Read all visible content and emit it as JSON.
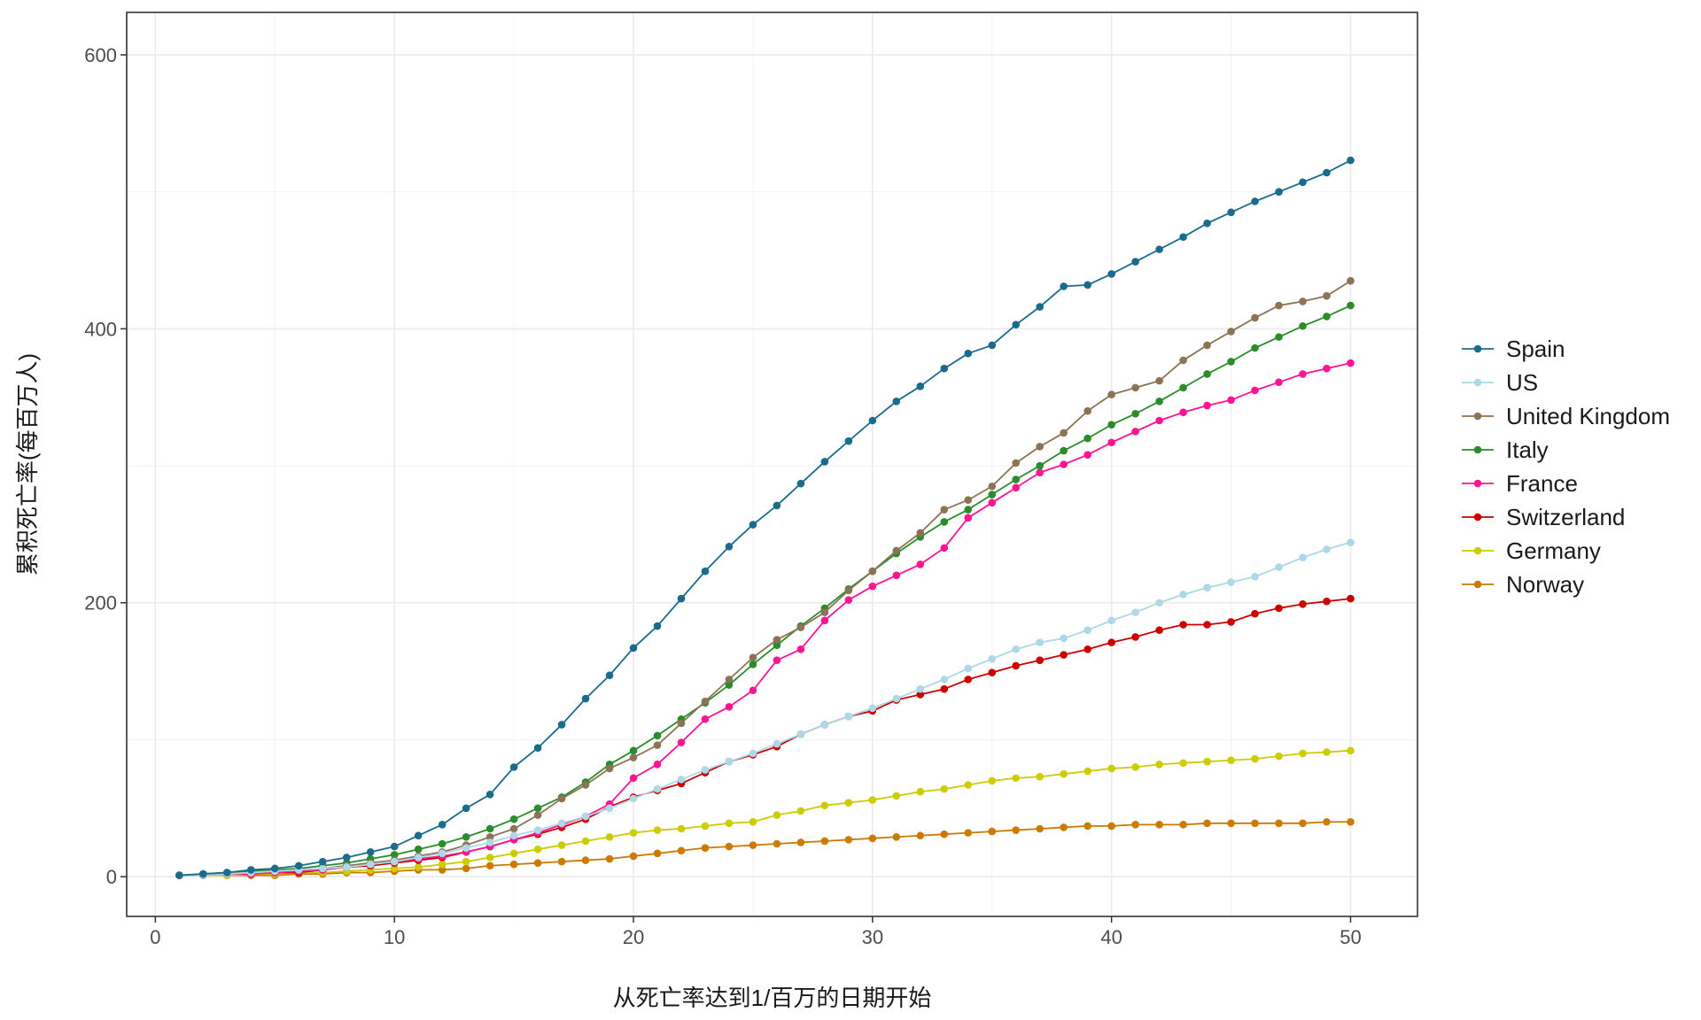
{
  "chart_data": {
    "type": "line",
    "xlabel": "从死亡率达到1/百万的日期开始",
    "ylabel": "累积死亡率(每百万人)",
    "xlim": [
      -1.2,
      52.8
    ],
    "ylim": [
      -29,
      631
    ],
    "x_ticks": [
      0,
      10,
      20,
      30,
      40,
      50
    ],
    "y_ticks": [
      0,
      200,
      400,
      600
    ],
    "grid": true,
    "legend_position": "right",
    "x": [
      1,
      2,
      3,
      4,
      5,
      6,
      7,
      8,
      9,
      10,
      11,
      12,
      13,
      14,
      15,
      16,
      17,
      18,
      19,
      20,
      21,
      22,
      23,
      24,
      25,
      26,
      27,
      28,
      29,
      30,
      31,
      32,
      33,
      34,
      35,
      36,
      37,
      38,
      39,
      40,
      41,
      42,
      43,
      44,
      45,
      46,
      47,
      48,
      49,
      50
    ],
    "series": [
      {
        "name": "Spain",
        "color": "#1a6b8c",
        "values": [
          1,
          2,
          3,
          5,
          6,
          8,
          11,
          14,
          18,
          22,
          30,
          38,
          50,
          60,
          80,
          94,
          111,
          130,
          147,
          167,
          183,
          203,
          223,
          241,
          257,
          271,
          287,
          303,
          318,
          333,
          347,
          358,
          371,
          382,
          388,
          403,
          416,
          431,
          432,
          440,
          449,
          458,
          467,
          477,
          485,
          493,
          500,
          507,
          514,
          523
        ]
      },
      {
        "name": "US",
        "color": "#add8e6",
        "values": [
          1,
          1,
          2,
          3,
          4,
          5,
          6,
          7,
          9,
          11,
          14,
          17,
          21,
          25,
          30,
          34,
          39,
          44,
          50,
          57,
          64,
          71,
          78,
          84,
          90,
          97,
          104,
          111,
          117,
          123,
          130,
          137,
          144,
          152,
          159,
          166,
          171,
          174,
          180,
          187,
          193,
          200,
          206,
          211,
          215,
          219,
          226,
          233,
          239,
          244
        ]
      },
      {
        "name": "United Kingdom",
        "color": "#8b7355",
        "values": [
          1,
          1,
          2,
          3,
          4,
          5,
          6,
          8,
          10,
          12,
          15,
          18,
          23,
          29,
          35,
          45,
          57,
          67,
          79,
          87,
          96,
          112,
          128,
          144,
          160,
          173,
          182,
          193,
          209,
          223,
          238,
          251,
          268,
          275,
          285,
          302,
          314,
          324,
          340,
          352,
          357,
          362,
          377,
          388,
          398,
          408,
          417,
          420,
          424,
          435
        ]
      },
      {
        "name": "Italy",
        "color": "#2a8c2a",
        "values": [
          1,
          2,
          3,
          4,
          5,
          6,
          8,
          10,
          13,
          16,
          20,
          24,
          29,
          35,
          42,
          50,
          58,
          69,
          82,
          92,
          103,
          115,
          127,
          140,
          155,
          169,
          183,
          196,
          210,
          223,
          236,
          248,
          259,
          268,
          279,
          290,
          300,
          311,
          320,
          330,
          338,
          347,
          357,
          367,
          376,
          386,
          394,
          402,
          409,
          417
        ]
      },
      {
        "name": "France",
        "color": "#ff1493",
        "values": [
          1,
          1,
          2,
          2,
          3,
          4,
          5,
          7,
          9,
          11,
          13,
          15,
          18,
          22,
          27,
          32,
          38,
          44,
          53,
          72,
          82,
          98,
          115,
          124,
          136,
          158,
          166,
          187,
          202,
          212,
          220,
          228,
          240,
          262,
          273,
          284,
          295,
          301,
          308,
          317,
          325,
          333,
          339,
          344,
          348,
          355,
          361,
          367,
          371,
          375
        ]
      },
      {
        "name": "Switzerland",
        "color": "#cc0000",
        "values": [
          1,
          1,
          2,
          2,
          3,
          3,
          5,
          7,
          8,
          10,
          12,
          14,
          18,
          22,
          27,
          31,
          36,
          42,
          51,
          58,
          63,
          68,
          76,
          84,
          89,
          95,
          104,
          111,
          117,
          121,
          129,
          133,
          137,
          144,
          149,
          154,
          158,
          162,
          166,
          171,
          175,
          180,
          184,
          184,
          186,
          192,
          196,
          199,
          201,
          203
        ]
      },
      {
        "name": "Germany",
        "color": "#cccc00",
        "values": [
          1,
          1,
          1,
          2,
          2,
          3,
          3,
          4,
          5,
          6,
          7,
          9,
          11,
          14,
          17,
          20,
          23,
          26,
          29,
          32,
          34,
          35,
          37,
          39,
          40,
          45,
          48,
          52,
          54,
          56,
          59,
          62,
          64,
          67,
          70,
          72,
          73,
          75,
          77,
          79,
          80,
          82,
          83,
          84,
          85,
          86,
          88,
          90,
          91,
          92
        ]
      },
      {
        "name": "Norway",
        "color": "#cc7a00",
        "values": [
          1,
          1,
          1,
          1,
          1,
          2,
          2,
          3,
          3,
          4,
          5,
          5,
          6,
          8,
          9,
          10,
          11,
          12,
          13,
          15,
          17,
          19,
          21,
          22,
          23,
          24,
          25,
          26,
          27,
          28,
          29,
          30,
          31,
          32,
          33,
          34,
          35,
          36,
          37,
          37,
          38,
          38,
          38,
          39,
          39,
          39,
          39,
          39,
          40,
          40
        ]
      }
    ]
  }
}
